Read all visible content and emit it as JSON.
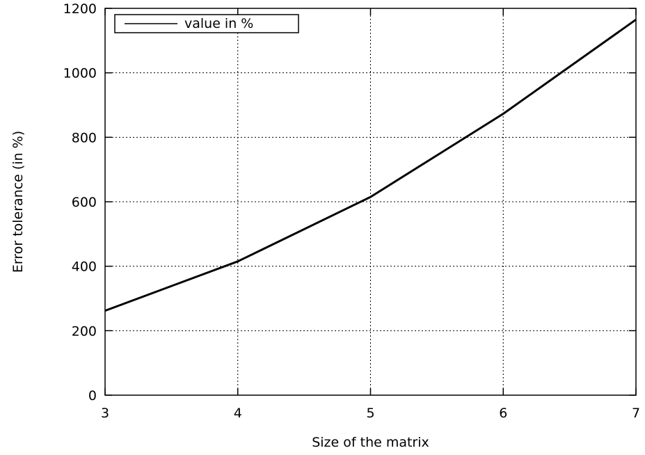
{
  "chart_data": {
    "type": "line",
    "title": "",
    "xlabel": "Size of the matrix",
    "ylabel": "Error tolerance (in %)",
    "xlim": [
      3,
      7
    ],
    "ylim": [
      0,
      1200
    ],
    "xticks": [
      3,
      4,
      5,
      6,
      7
    ],
    "yticks": [
      0,
      200,
      400,
      600,
      800,
      1000,
      1200
    ],
    "grid": true,
    "legend_position": "top-left",
    "series": [
      {
        "name": "value in %",
        "color": "#000000",
        "x": [
          3,
          4,
          5,
          6,
          7
        ],
        "y": [
          262,
          415,
          615,
          873,
          1165
        ]
      }
    ]
  }
}
